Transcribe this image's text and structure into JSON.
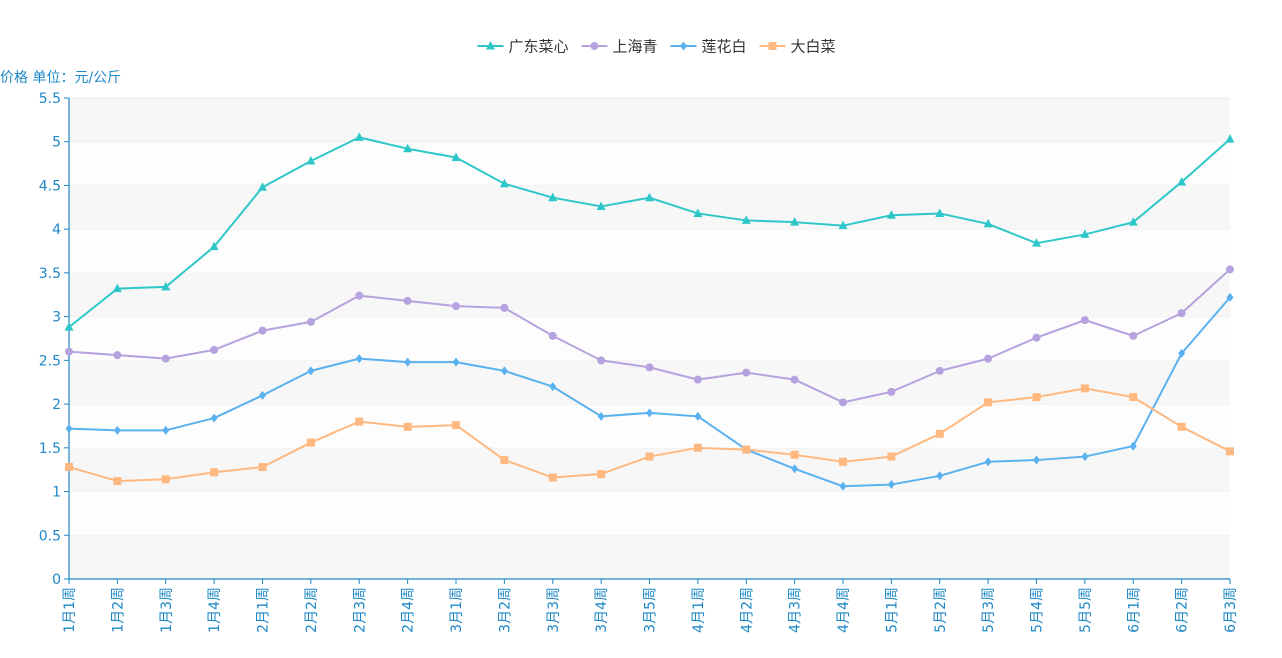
{
  "chart_data": {
    "type": "line",
    "ylabel": "价格 单位：元/公斤",
    "ylim": [
      0,
      5.5
    ],
    "y_ticks": [
      "0",
      "0.5",
      "1",
      "1.5",
      "2",
      "2.5",
      "3",
      "3.5",
      "4",
      "4.5",
      "5",
      "5.5"
    ],
    "legend_position": "top-center",
    "grid": "horizontal-bands",
    "categories": [
      "1月1周",
      "1月2周",
      "1月3周",
      "1月4周",
      "2月1周",
      "2月2周",
      "2月3周",
      "2月4周",
      "3月1周",
      "3月2周",
      "3月3周",
      "3月4周",
      "3月5周",
      "4月1周",
      "4月2周",
      "4月3周",
      "4月4周",
      "5月1周",
      "5月2周",
      "5月3周",
      "5月4周",
      "5月5周",
      "6月1周",
      "6月2周",
      "6月3周"
    ],
    "series": [
      {
        "name": "广东菜心",
        "color": "#2ec7c9",
        "marker": "triangle",
        "values": [
          2.88,
          3.32,
          3.34,
          3.8,
          4.48,
          4.78,
          5.05,
          4.92,
          4.82,
          4.52,
          4.36,
          4.26,
          4.36,
          4.18,
          4.1,
          4.08,
          4.04,
          4.16,
          4.18,
          4.06,
          3.84,
          3.94,
          4.08,
          4.54,
          5.03
        ]
      },
      {
        "name": "上海青",
        "color": "#b6a2de",
        "marker": "circle",
        "values": [
          2.6,
          2.56,
          2.52,
          2.62,
          2.84,
          2.94,
          3.24,
          3.18,
          3.12,
          3.1,
          2.78,
          2.5,
          2.42,
          2.28,
          2.36,
          2.28,
          2.02,
          2.14,
          2.38,
          2.52,
          2.76,
          2.96,
          2.78,
          3.04,
          3.54
        ]
      },
      {
        "name": "莲花白",
        "color": "#5ab1ef",
        "marker": "diamond",
        "values": [
          1.72,
          1.7,
          1.7,
          1.84,
          2.1,
          2.38,
          2.52,
          2.48,
          2.48,
          2.38,
          2.2,
          1.86,
          1.9,
          1.86,
          1.48,
          1.26,
          1.06,
          1.08,
          1.18,
          1.34,
          1.36,
          1.4,
          1.52,
          2.58,
          3.22
        ]
      },
      {
        "name": "大白菜",
        "color": "#ffb980",
        "marker": "square",
        "values": [
          1.28,
          1.12,
          1.14,
          1.22,
          1.28,
          1.56,
          1.8,
          1.74,
          1.76,
          1.36,
          1.16,
          1.2,
          1.4,
          1.5,
          1.48,
          1.42,
          1.34,
          1.4,
          1.66,
          2.02,
          2.08,
          2.18,
          2.08,
          1.74,
          1.46
        ]
      }
    ]
  }
}
